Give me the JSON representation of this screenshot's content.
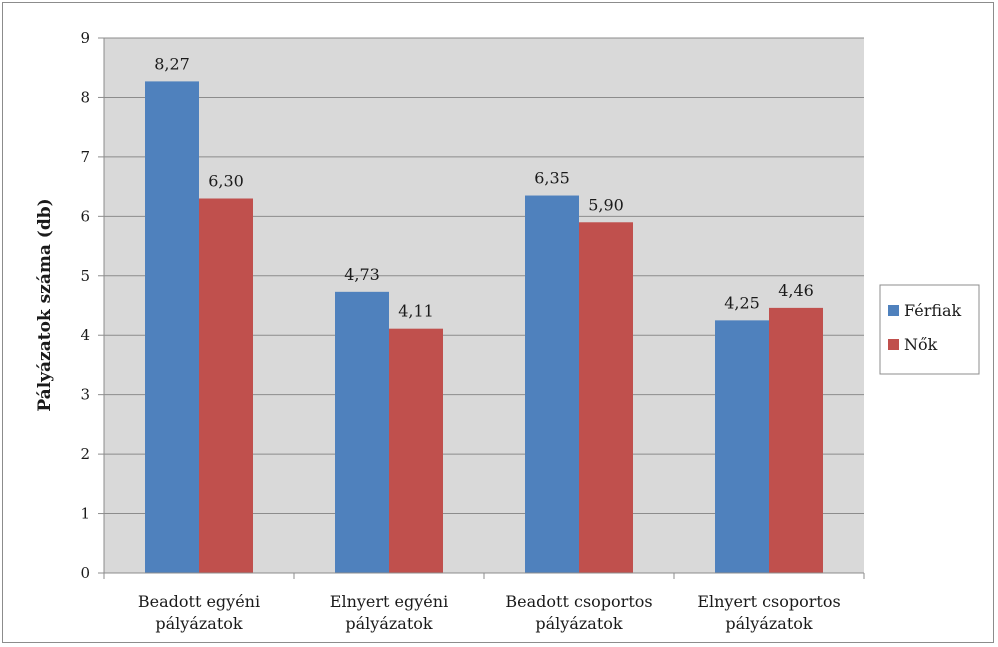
{
  "chart_data": {
    "type": "bar",
    "title": "",
    "xlabel": "",
    "ylabel": "Pályázatok száma (db)",
    "ylim": [
      0,
      9
    ],
    "yticks": [
      0,
      1,
      2,
      3,
      4,
      5,
      6,
      7,
      8,
      9
    ],
    "grid": true,
    "legend_position": "right",
    "categories": [
      [
        "Beadott egyéni",
        "pályázatok"
      ],
      [
        "Elnyert egyéni",
        "pályázatok"
      ],
      [
        "Beadott csoportos",
        "pályázatok"
      ],
      [
        "Elnyert csoportos",
        "pályázatok"
      ]
    ],
    "series": [
      {
        "name": "Férfiak",
        "color": "#4f81bd",
        "values": [
          8.27,
          4.73,
          6.35,
          4.25
        ],
        "labels": [
          "8,27",
          "4,73",
          "6,35",
          "4,25"
        ]
      },
      {
        "name": "Nők",
        "color": "#c0504d",
        "values": [
          6.3,
          4.11,
          5.9,
          4.46
        ],
        "labels": [
          "6,30",
          "4,11",
          "5,90",
          "4,46"
        ]
      }
    ],
    "plot_background": "#d9d9d9"
  }
}
